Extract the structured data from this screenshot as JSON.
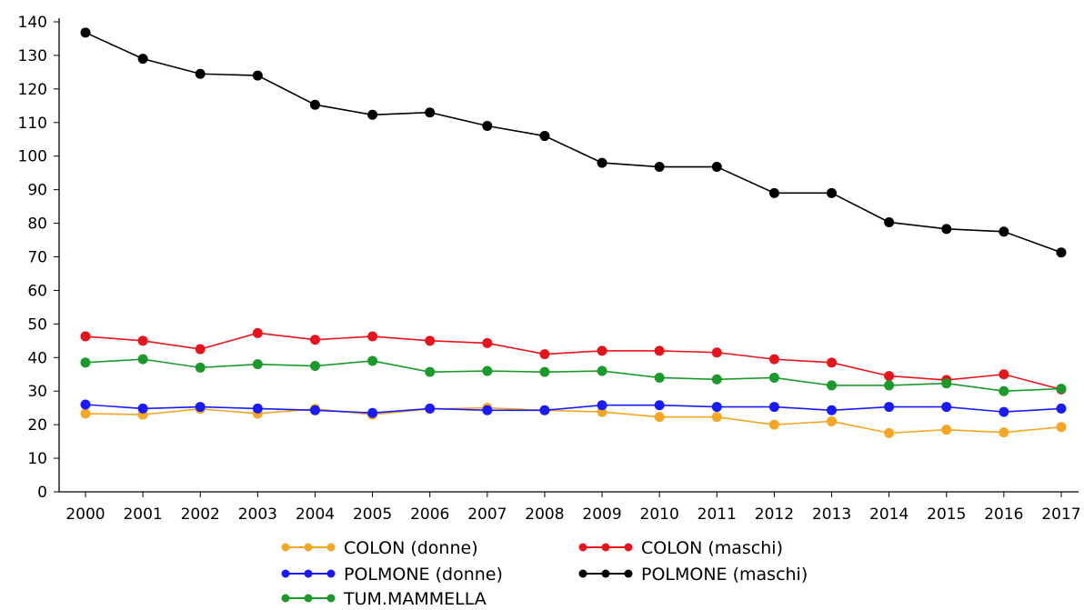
{
  "chart_data": {
    "type": "line",
    "title": "",
    "xlabel": "",
    "ylabel": "",
    "x": [
      "2000",
      "2001",
      "2002",
      "2003",
      "2004",
      "2005",
      "2006",
      "2007",
      "2008",
      "2009",
      "2010",
      "2011",
      "2012",
      "2013",
      "2014",
      "2015",
      "2016",
      "2017"
    ],
    "ylim": [
      0,
      140
    ],
    "yticks": [
      0,
      10,
      20,
      30,
      40,
      50,
      60,
      70,
      80,
      90,
      100,
      110,
      120,
      130,
      140
    ],
    "grid": false,
    "legend_position": "bottom",
    "series": [
      {
        "name": "COLON (donne)",
        "color": "#f5a623",
        "values": [
          23.3,
          23.0,
          24.7,
          23.3,
          24.7,
          23.0,
          24.7,
          25.0,
          24.3,
          23.8,
          22.3,
          22.3,
          20.0,
          21.0,
          17.5,
          18.5,
          17.7,
          19.3
        ]
      },
      {
        "name": "COLON (maschi)",
        "color": "#e8141c",
        "values": [
          46.3,
          45.0,
          42.5,
          47.3,
          45.3,
          46.3,
          45.0,
          44.3,
          41.0,
          42.0,
          42.0,
          41.5,
          39.5,
          38.5,
          34.5,
          33.3,
          35.0,
          30.5
        ]
      },
      {
        "name": "POLMONE (donne)",
        "color": "#1a1aff",
        "values": [
          26.0,
          24.8,
          25.3,
          24.8,
          24.3,
          23.5,
          24.8,
          24.3,
          24.3,
          25.8,
          25.8,
          25.3,
          25.3,
          24.3,
          25.3,
          25.3,
          23.8,
          24.8
        ]
      },
      {
        "name": "POLMONE (maschi)",
        "color": "#000000",
        "values": [
          136.8,
          129.0,
          124.5,
          124.0,
          115.3,
          112.3,
          113.0,
          109.0,
          106.0,
          98.0,
          96.8,
          96.8,
          89.0,
          89.0,
          80.3,
          78.3,
          77.5,
          71.3
        ]
      },
      {
        "name": "TUM.MAMMELLA",
        "color": "#1a9a2a",
        "values": [
          38.5,
          39.5,
          37.0,
          38.0,
          37.5,
          39.0,
          35.7,
          36.0,
          35.7,
          36.0,
          34.0,
          33.5,
          34.0,
          31.7,
          31.7,
          32.3,
          30.0,
          30.7
        ]
      }
    ]
  }
}
